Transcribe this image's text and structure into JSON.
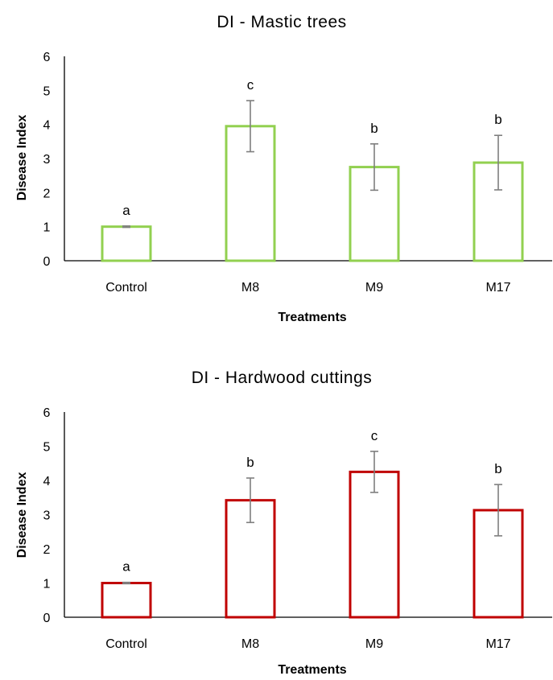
{
  "chart_data": [
    {
      "type": "bar",
      "title": "DI - Mastic trees",
      "xlabel": "Treatments",
      "ylabel": "Disease Index",
      "categories": [
        "Control",
        "M8",
        "M9",
        "M17"
      ],
      "values": [
        1.0,
        3.95,
        2.75,
        2.88
      ],
      "error": [
        0.02,
        0.75,
        0.68,
        0.8
      ],
      "significance": [
        "a",
        "c",
        "b",
        "b"
      ],
      "ylim": [
        0,
        6
      ],
      "yticks": [
        "0",
        "1",
        "2",
        "3",
        "4",
        "5",
        "6"
      ],
      "bar_color": "#92d050",
      "grid": false,
      "legend": "none"
    },
    {
      "type": "bar",
      "title": "DI - Hardwood cuttings",
      "xlabel": "Treatments",
      "ylabel": "Disease Index",
      "categories": [
        "Control",
        "M8",
        "M9",
        "M17"
      ],
      "values": [
        1.0,
        3.42,
        4.25,
        3.13
      ],
      "error": [
        0.02,
        0.65,
        0.6,
        0.75
      ],
      "significance": [
        "a",
        "b",
        "c",
        "b"
      ],
      "ylim": [
        0,
        6
      ],
      "yticks": [
        "0",
        "1",
        "2",
        "3",
        "4",
        "5",
        "6"
      ],
      "bar_color": "#c00000",
      "grid": false,
      "legend": "none"
    }
  ]
}
